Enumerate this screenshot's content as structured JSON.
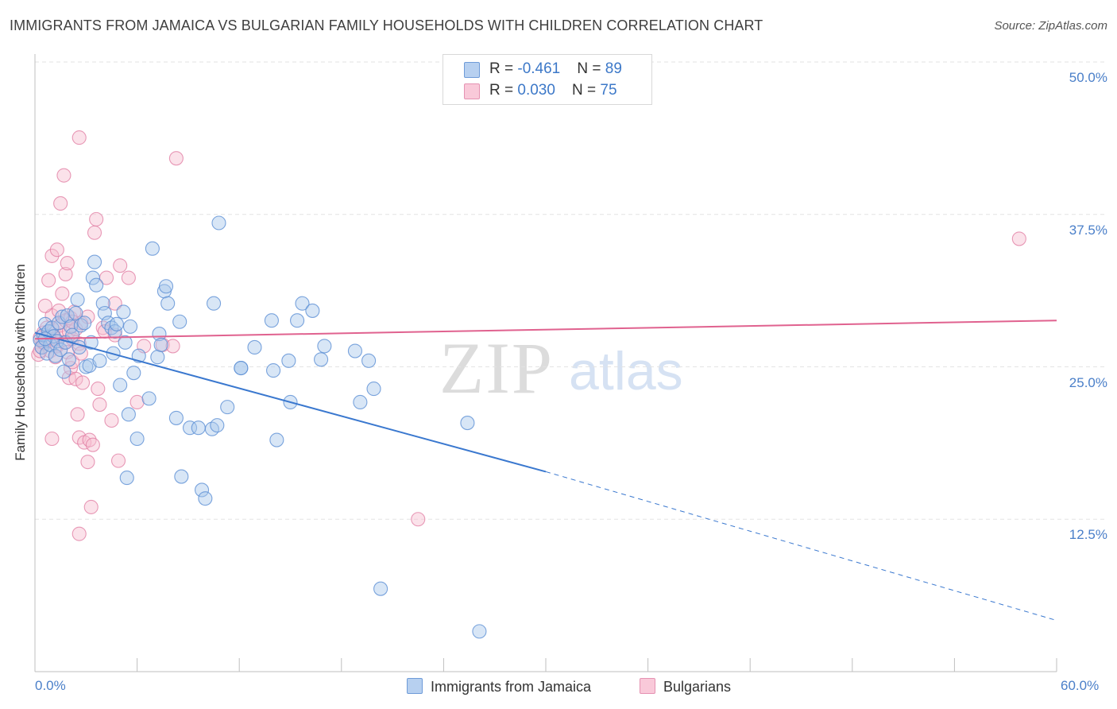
{
  "header": {
    "title": "IMMIGRANTS FROM JAMAICA VS BULGARIAN FAMILY HOUSEHOLDS WITH CHILDREN CORRELATION CHART",
    "source": "Source: ZipAtlas.com"
  },
  "watermark": {
    "zip": "ZIP",
    "atlas": "atlas"
  },
  "legend": {
    "rows": [
      {
        "r_label": "R = ",
        "r_value": "-0.461",
        "n_label": "N = ",
        "n_value": "89"
      },
      {
        "r_label": "R = ",
        "r_value": " 0.030",
        "n_label": "N = ",
        "n_value": "75"
      }
    ]
  },
  "bottom_legend": [
    {
      "label": "Immigrants from Jamaica"
    },
    {
      "label": "Bulgarians"
    }
  ],
  "colors": {
    "blue_fill": "#a9c7ec",
    "blue_stroke": "#5b8fd4",
    "blue_line": "#3a78cf",
    "pink_fill": "#f6bfd1",
    "pink_stroke": "#e07aa0",
    "pink_line": "#e0628f",
    "tick_text": "#4a7fc9",
    "grid": "#e3e3e3"
  },
  "chart_data": {
    "type": "scatter",
    "title": "IMMIGRANTS FROM JAMAICA VS BULGARIAN FAMILY HOUSEHOLDS WITH CHILDREN CORRELATION CHART",
    "xlabel": "",
    "ylabel": "Family Households with Children",
    "xlim": [
      0,
      60
    ],
    "ylim": [
      0,
      50
    ],
    "x_tick_labels": [
      "0.0%",
      "60.0%"
    ],
    "y_ticks": [
      12.5,
      25.0,
      37.5,
      50.0
    ],
    "y_tick_labels": [
      "12.5%",
      "25.0%",
      "37.5%",
      "50.0%"
    ],
    "grid": true,
    "legend_position": "top-center",
    "series": [
      {
        "name": "Immigrants from Jamaica",
        "r": -0.461,
        "n": 89,
        "trend": {
          "x0": 0,
          "y0": 27.8,
          "x1": 30,
          "y1": 16.4,
          "dash_to_x": 60,
          "dash_to_y": 4.2
        },
        "points": [
          [
            0.3,
            27.2
          ],
          [
            0.4,
            26.6
          ],
          [
            0.5,
            27.6
          ],
          [
            0.6,
            28.5
          ],
          [
            0.7,
            26.1
          ],
          [
            0.8,
            27.9
          ],
          [
            0.9,
            26.8
          ],
          [
            1.0,
            28.2
          ],
          [
            1.1,
            27.5
          ],
          [
            1.2,
            25.9
          ],
          [
            1.3,
            27.1
          ],
          [
            1.4,
            28.6
          ],
          [
            1.5,
            26.4
          ],
          [
            1.6,
            29.1
          ],
          [
            1.7,
            24.6
          ],
          [
            1.8,
            27.0
          ],
          [
            1.9,
            29.2
          ],
          [
            2.0,
            25.6
          ],
          [
            2.1,
            28.3
          ],
          [
            2.2,
            27.6
          ],
          [
            2.4,
            29.4
          ],
          [
            2.5,
            30.5
          ],
          [
            2.6,
            26.6
          ],
          [
            2.7,
            28.4
          ],
          [
            2.9,
            28.6
          ],
          [
            3.0,
            25.0
          ],
          [
            3.2,
            25.1
          ],
          [
            3.3,
            27.0
          ],
          [
            3.4,
            32.3
          ],
          [
            3.5,
            33.6
          ],
          [
            3.6,
            31.7
          ],
          [
            3.8,
            25.5
          ],
          [
            4.0,
            30.2
          ],
          [
            4.1,
            29.4
          ],
          [
            4.3,
            28.6
          ],
          [
            4.5,
            28.2
          ],
          [
            4.6,
            26.1
          ],
          [
            4.7,
            27.9
          ],
          [
            4.8,
            28.5
          ],
          [
            5.0,
            23.5
          ],
          [
            5.2,
            29.5
          ],
          [
            5.3,
            27.0
          ],
          [
            5.4,
            15.9
          ],
          [
            5.5,
            21.1
          ],
          [
            5.6,
            28.3
          ],
          [
            5.8,
            24.5
          ],
          [
            6.0,
            19.1
          ],
          [
            6.1,
            25.9
          ],
          [
            6.9,
            34.7
          ],
          [
            6.7,
            22.4
          ],
          [
            7.2,
            25.8
          ],
          [
            7.3,
            27.7
          ],
          [
            7.4,
            26.8
          ],
          [
            7.6,
            31.2
          ],
          [
            7.7,
            31.6
          ],
          [
            7.8,
            30.2
          ],
          [
            8.3,
            20.8
          ],
          [
            8.5,
            28.7
          ],
          [
            8.6,
            16.0
          ],
          [
            9.1,
            20.0
          ],
          [
            9.6,
            20.0
          ],
          [
            9.8,
            14.9
          ],
          [
            10.0,
            14.2
          ],
          [
            10.4,
            19.9
          ],
          [
            10.7,
            20.2
          ],
          [
            10.5,
            30.2
          ],
          [
            10.8,
            36.8
          ],
          [
            11.3,
            21.7
          ],
          [
            12.1,
            24.9
          ],
          [
            12.9,
            26.6
          ],
          [
            13.9,
            28.8
          ],
          [
            14.0,
            24.7
          ],
          [
            14.2,
            19.0
          ],
          [
            14.9,
            25.5
          ],
          [
            15.0,
            22.1
          ],
          [
            15.4,
            28.8
          ],
          [
            15.7,
            30.2
          ],
          [
            16.3,
            29.6
          ],
          [
            16.8,
            25.6
          ],
          [
            17.0,
            26.7
          ],
          [
            18.8,
            26.3
          ],
          [
            19.1,
            22.1
          ],
          [
            19.6,
            25.5
          ],
          [
            19.9,
            23.2
          ],
          [
            20.3,
            6.8
          ],
          [
            25.4,
            20.4
          ],
          [
            26.1,
            3.3
          ],
          [
            12.1,
            24.9
          ],
          [
            0.6,
            27.3
          ]
        ]
      },
      {
        "name": "Bulgarians",
        "r": 0.03,
        "n": 75,
        "trend": {
          "x0": 0,
          "y0": 27.3,
          "x1": 60,
          "y1": 28.8
        },
        "points": [
          [
            0.2,
            26.0
          ],
          [
            0.3,
            27.4
          ],
          [
            0.4,
            26.6
          ],
          [
            0.5,
            27.8
          ],
          [
            0.6,
            26.9
          ],
          [
            0.7,
            28.2
          ],
          [
            0.8,
            27.1
          ],
          [
            0.9,
            26.3
          ],
          [
            1.0,
            29.2
          ],
          [
            1.1,
            28.0
          ],
          [
            1.2,
            27.3
          ],
          [
            1.3,
            26.7
          ],
          [
            1.4,
            29.6
          ],
          [
            1.5,
            28.4
          ],
          [
            1.6,
            27.6
          ],
          [
            1.7,
            27.0
          ],
          [
            1.8,
            28.8
          ],
          [
            1.9,
            26.2
          ],
          [
            2.0,
            27.9
          ],
          [
            2.1,
            29.0
          ],
          [
            2.2,
            27.3
          ],
          [
            2.3,
            29.5
          ],
          [
            2.4,
            28.1
          ],
          [
            2.6,
            26.9
          ],
          [
            2.7,
            28.6
          ],
          [
            0.6,
            30.0
          ],
          [
            0.8,
            32.1
          ],
          [
            1.0,
            34.1
          ],
          [
            1.3,
            34.6
          ],
          [
            1.5,
            38.4
          ],
          [
            1.6,
            31.0
          ],
          [
            1.7,
            40.7
          ],
          [
            1.8,
            32.6
          ],
          [
            1.9,
            33.5
          ],
          [
            2.0,
            24.1
          ],
          [
            2.1,
            24.9
          ],
          [
            2.2,
            25.4
          ],
          [
            2.4,
            24.0
          ],
          [
            2.5,
            21.1
          ],
          [
            2.6,
            19.2
          ],
          [
            2.7,
            26.1
          ],
          [
            2.8,
            23.7
          ],
          [
            2.9,
            18.8
          ],
          [
            3.1,
            17.2
          ],
          [
            3.2,
            19.0
          ],
          [
            3.3,
            13.5
          ],
          [
            3.4,
            18.6
          ],
          [
            3.5,
            36.0
          ],
          [
            3.6,
            37.1
          ],
          [
            3.7,
            23.2
          ],
          [
            3.8,
            21.9
          ],
          [
            4.0,
            28.2
          ],
          [
            4.1,
            27.9
          ],
          [
            4.2,
            32.3
          ],
          [
            4.5,
            20.6
          ],
          [
            4.7,
            30.2
          ],
          [
            4.9,
            17.3
          ],
          [
            5.0,
            33.3
          ],
          [
            5.5,
            32.3
          ],
          [
            6.0,
            22.1
          ],
          [
            6.4,
            26.7
          ],
          [
            7.5,
            26.8
          ],
          [
            8.1,
            26.7
          ],
          [
            8.3,
            42.1
          ],
          [
            2.6,
            43.8
          ],
          [
            2.6,
            11.3
          ],
          [
            1.0,
            19.1
          ],
          [
            3.1,
            29.1
          ],
          [
            4.7,
            27.6
          ],
          [
            22.5,
            12.5
          ],
          [
            57.8,
            35.5
          ],
          [
            0.3,
            26.3
          ],
          [
            0.5,
            27.0
          ],
          [
            1.2,
            25.8
          ],
          [
            2.2,
            28.7
          ]
        ]
      }
    ]
  }
}
